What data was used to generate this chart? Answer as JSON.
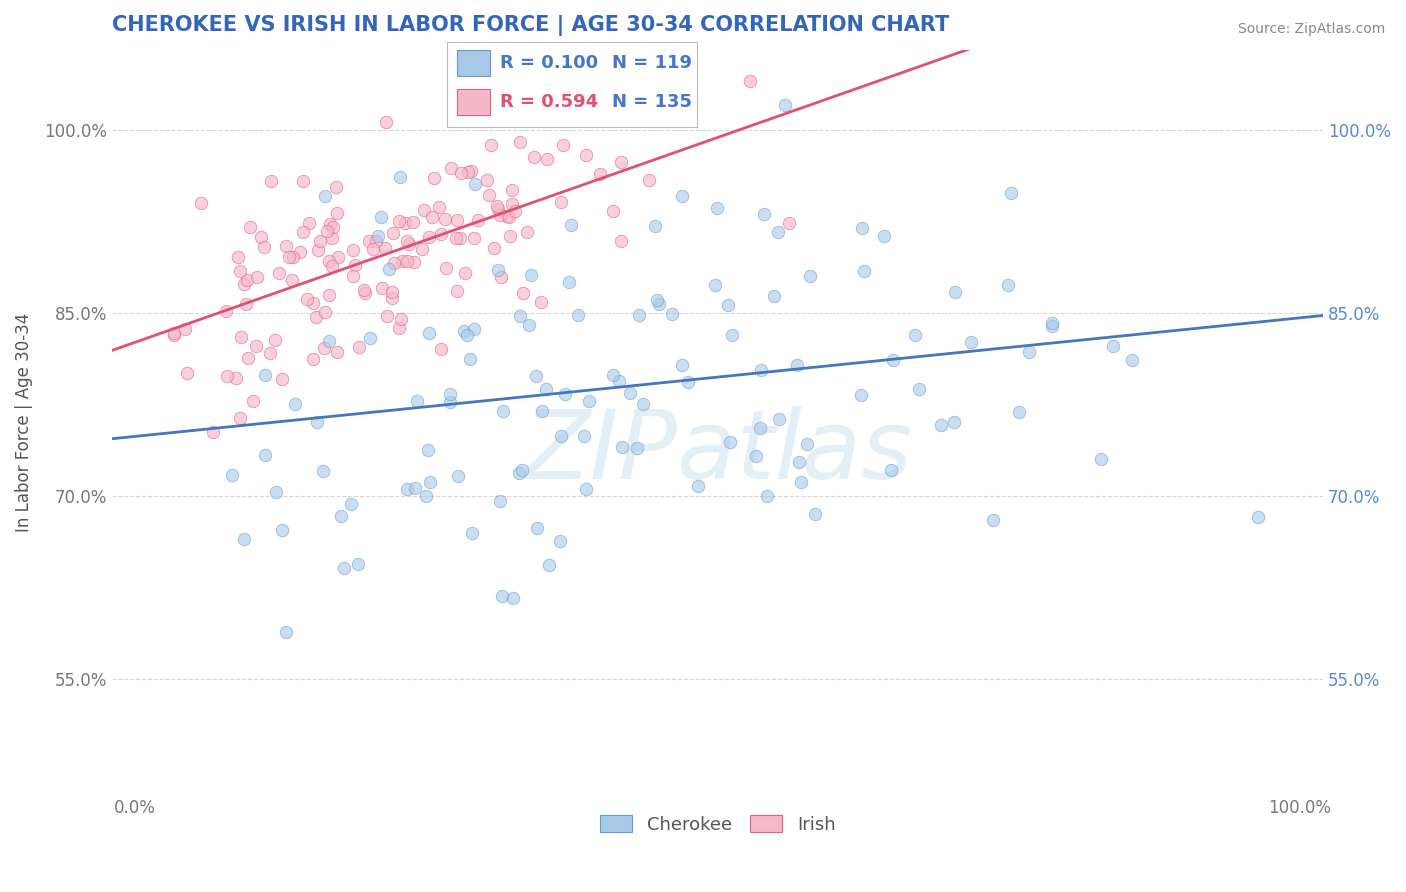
{
  "title": "CHEROKEE VS IRISH IN LABOR FORCE | AGE 30-34 CORRELATION CHART",
  "source_text": "Source: ZipAtlas.com",
  "ylabel": "In Labor Force | Age 30-34",
  "xlim": [
    -0.02,
    1.02
  ],
  "ylim": [
    0.455,
    1.065
  ],
  "x_ticks": [
    0.0,
    0.2,
    0.4,
    0.6,
    0.8,
    1.0
  ],
  "x_tick_labels": [
    "0.0%",
    "",
    "",
    "",
    "",
    "100.0%"
  ],
  "y_ticks": [
    0.55,
    0.7,
    0.85,
    1.0
  ],
  "y_tick_labels": [
    "55.0%",
    "70.0%",
    "85.0%",
    "100.0%"
  ],
  "cherokee_color": "#a8c8e8",
  "cherokee_edge": "#6699cc",
  "irish_color": "#f5b8c8",
  "irish_edge": "#e06080",
  "cherokee_line_color": "#4477bb",
  "irish_line_color": "#e05070",
  "legend_R_cherokee": "R = 0.100",
  "legend_N_cherokee": "N = 119",
  "legend_R_irish": "R = 0.594",
  "legend_N_irish": "N = 135",
  "cherokee_label": "Cherokee",
  "irish_label": "Irish",
  "title_color": "#3366bb",
  "axis_label_color": "#555555",
  "tick_color_left": "#777777",
  "tick_color_right": "#5588dd",
  "source_color": "#888888",
  "legend_R_color_cherokee": "#4477cc",
  "legend_R_color_irish": "#e05070",
  "legend_N_color_cherokee": "#4477cc",
  "legend_N_color_irish": "#4477cc",
  "cherokee_R": 0.1,
  "irish_R": 0.594,
  "cherokee_N": 119,
  "irish_N": 135,
  "marker_size": 9,
  "cherokee_alpha": 0.6,
  "irish_alpha": 0.65,
  "seed": 42,
  "watermark_color": "#c8dff0",
  "watermark_alpha": 0.5
}
